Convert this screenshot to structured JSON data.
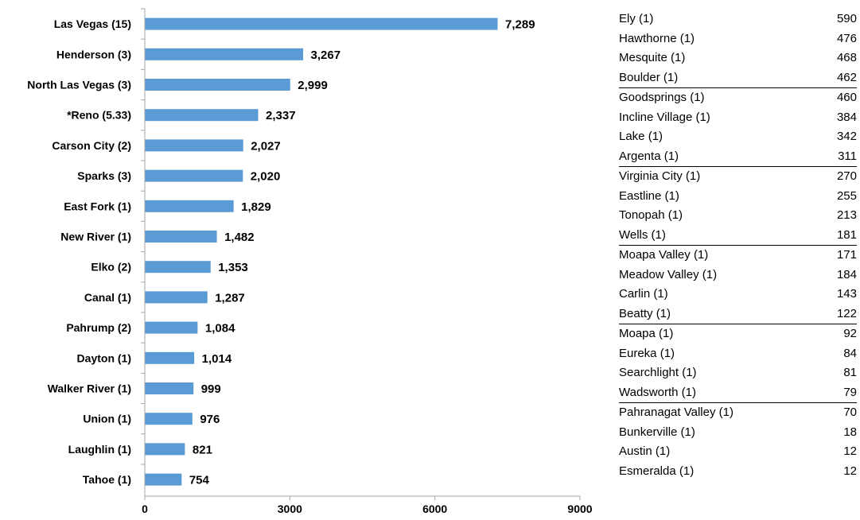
{
  "chart_data": {
    "type": "bar",
    "orientation": "horizontal",
    "categories": [
      "Las Vegas (15)",
      "Henderson (3)",
      "North Las Vegas (3)",
      "*Reno (5.33)",
      "Carson City (2)",
      "Sparks (3)",
      "East Fork (1)",
      "New River (1)",
      "Elko (2)",
      "Canal (1)",
      "Pahrump (2)",
      "Dayton (1)",
      "Walker River (1)",
      "Union (1)",
      "Laughlin (1)",
      "Tahoe (1)"
    ],
    "values": [
      7289,
      3267,
      2999,
      2337,
      2027,
      2020,
      1829,
      1482,
      1353,
      1287,
      1084,
      1014,
      999,
      976,
      821,
      754
    ],
    "value_labels": [
      "7,289",
      "3,267",
      "2,999",
      "2,337",
      "2,027",
      "2,020",
      "1,829",
      "1,482",
      "1,353",
      "1,287",
      "1,084",
      "1,014",
      "999",
      "976",
      "821",
      "754"
    ],
    "xlim": [
      0,
      9000
    ],
    "x_ticks": [
      "0",
      "3000",
      "6000",
      "9000"
    ],
    "bar_color": "#5B9BD5",
    "grid": false
  },
  "side_table": {
    "rows": [
      {
        "name": "Ely (1)",
        "value": "590",
        "group_start": false
      },
      {
        "name": "Hawthorne (1)",
        "value": "476",
        "group_start": false
      },
      {
        "name": "Mesquite (1)",
        "value": "468",
        "group_start": false
      },
      {
        "name": "Boulder (1)",
        "value": "462",
        "group_start": false
      },
      {
        "name": "Goodsprings (1)",
        "value": "460",
        "group_start": true
      },
      {
        "name": "Incline Village (1)",
        "value": "384",
        "group_start": false
      },
      {
        "name": "Lake (1)",
        "value": "342",
        "group_start": false
      },
      {
        "name": "Argenta (1)",
        "value": "311",
        "group_start": false
      },
      {
        "name": "Virginia City (1)",
        "value": "270",
        "group_start": true
      },
      {
        "name": "Eastline (1)",
        "value": "255",
        "group_start": false
      },
      {
        "name": "Tonopah (1)",
        "value": "213",
        "group_start": false
      },
      {
        "name": "Wells (1)",
        "value": "181",
        "group_start": false
      },
      {
        "name": "Moapa Valley (1)",
        "value": "171",
        "group_start": true
      },
      {
        "name": "Meadow Valley (1)",
        "value": "184",
        "group_start": false
      },
      {
        "name": "Carlin (1)",
        "value": "143",
        "group_start": false
      },
      {
        "name": "Beatty (1)",
        "value": "122",
        "group_start": false
      },
      {
        "name": "Moapa (1)",
        "value": "92",
        "group_start": true
      },
      {
        "name": "Eureka (1)",
        "value": "84",
        "group_start": false
      },
      {
        "name": "Searchlight (1)",
        "value": "81",
        "group_start": false
      },
      {
        "name": "Wadsworth (1)",
        "value": "79",
        "group_start": false
      },
      {
        "name": "Pahranagat Valley (1)",
        "value": "70",
        "group_start": true
      },
      {
        "name": "Bunkerville (1)",
        "value": "18",
        "group_start": false
      },
      {
        "name": "Austin (1)",
        "value": "12",
        "group_start": false
      },
      {
        "name": "Esmeralda (1)",
        "value": "12",
        "group_start": false
      }
    ]
  }
}
